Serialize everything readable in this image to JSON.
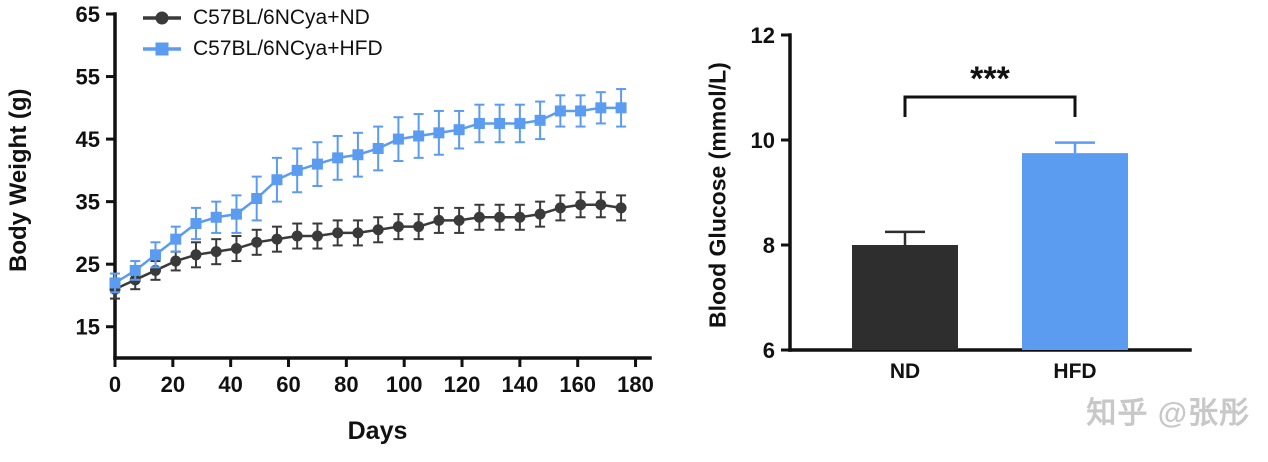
{
  "figure": {
    "background": "#ffffff",
    "axis_color": "#111111"
  },
  "watermark": {
    "text": "知乎 @张彤",
    "color": "#c8c8c8"
  },
  "chart_data": [
    {
      "type": "line",
      "title": "",
      "xlabel": "Days",
      "ylabel": "Body Weight (g)",
      "legend_position": "top-left",
      "grid": false,
      "xlim": [
        0,
        185
      ],
      "ylim": [
        10,
        65
      ],
      "xticks": [
        0,
        20,
        40,
        60,
        80,
        100,
        120,
        140,
        160,
        180
      ],
      "yticks": [
        15,
        25,
        35,
        45,
        55,
        65
      ],
      "x": [
        0,
        7,
        14,
        21,
        28,
        35,
        42,
        49,
        56,
        63,
        70,
        77,
        84,
        91,
        98,
        105,
        112,
        119,
        126,
        133,
        140,
        147,
        154,
        161,
        168,
        175
      ],
      "series": [
        {
          "name": "C57BL/6NCya+ND",
          "marker": "circle",
          "color": "#3a3a3a",
          "values": [
            21,
            22.5,
            24,
            25.5,
            26.5,
            27,
            27.5,
            28.5,
            29,
            29.5,
            29.5,
            30,
            30,
            30.5,
            31,
            31,
            32,
            32,
            32.5,
            32.5,
            32.5,
            33,
            34,
            34.5,
            34.5,
            34
          ],
          "errors": [
            1.5,
            1.5,
            1.5,
            1.5,
            2,
            2,
            2,
            2,
            2,
            2,
            2,
            2,
            2,
            2,
            2,
            2,
            2,
            2,
            2,
            2,
            2,
            2,
            2,
            2,
            2,
            2
          ]
        },
        {
          "name": "C57BL/6NCya+HFD",
          "marker": "square",
          "color": "#5b9bf0",
          "values": [
            22,
            24,
            26.5,
            29,
            31.5,
            32.5,
            33,
            35.5,
            38.5,
            40,
            41,
            42,
            42.5,
            43.5,
            45,
            45.5,
            46,
            46.5,
            47.5,
            47.5,
            47.5,
            48,
            49.5,
            49.5,
            50,
            50
          ],
          "errors": [
            1.5,
            1.5,
            2,
            2,
            2.5,
            2.5,
            3,
            3.5,
            3.5,
            3.5,
            3.5,
            3.5,
            3.5,
            3.5,
            3.5,
            3.5,
            3.5,
            3,
            3,
            3,
            3,
            3,
            2.5,
            2.5,
            2.5,
            3
          ]
        }
      ]
    },
    {
      "type": "bar",
      "title": "",
      "xlabel": "",
      "ylabel": "Blood Glucose (mmol/L)",
      "grid": false,
      "categories": [
        "ND",
        "HFD"
      ],
      "values": [
        8.0,
        9.75
      ],
      "errors": [
        0.25,
        0.2
      ],
      "bar_colors": [
        "#2e2e2e",
        "#5b9bf0"
      ],
      "ylim": [
        6,
        12
      ],
      "yticks": [
        6,
        8,
        10,
        12
      ],
      "significance": {
        "label": "***",
        "between": [
          "ND",
          "HFD"
        ]
      }
    }
  ]
}
